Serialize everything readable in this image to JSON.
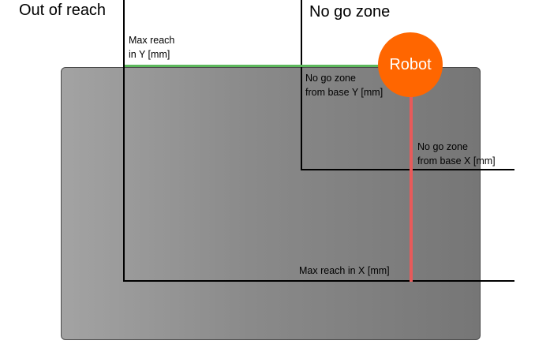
{
  "labels": {
    "out_of_reach": "Out of reach",
    "no_go_zone": "No go zone",
    "robot": "Robot",
    "max_reach_y": [
      "Max reach",
      "in Y [mm]"
    ],
    "no_go_zone_base_y": [
      "No go zone",
      "from base Y [mm]"
    ],
    "no_go_zone_base_x": [
      "No go zone",
      "from base X [mm]"
    ],
    "max_reach_x": "Max reach in X [mm]"
  },
  "colors": {
    "robot": "#ff6600",
    "reach_y_line": "#5cb85c",
    "reach_x_line": "#e85a5a",
    "work_area": "#8a8a8a"
  }
}
